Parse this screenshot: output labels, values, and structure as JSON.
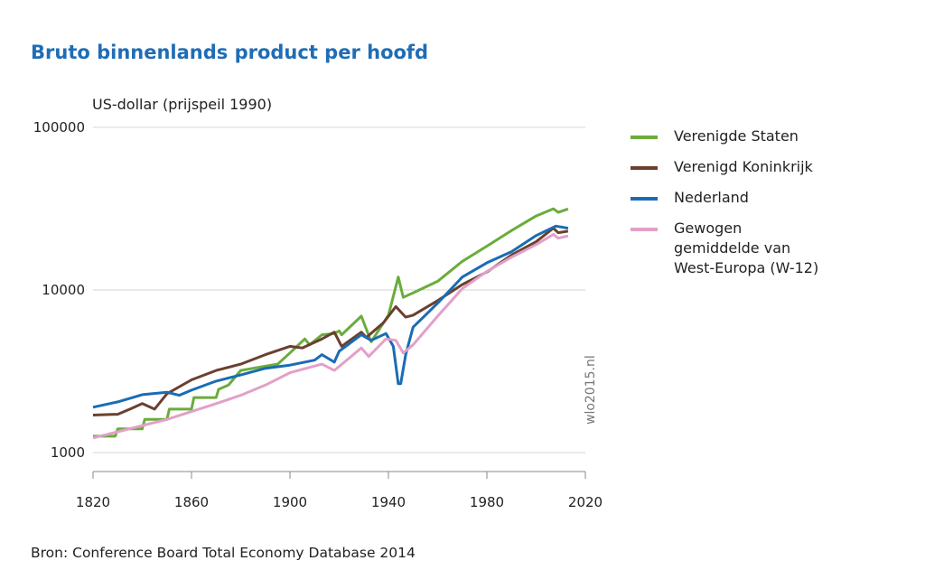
{
  "title": "Bruto binnenlands product per hoofd",
  "source": "Bron: Conference Board Total Economy Database 2014",
  "watermark": "wlo2015.nl",
  "chart_data": {
    "type": "line",
    "title": "Bruto binnenlands product per hoofd",
    "ylabel": "US-dollar (prijspeil 1990)",
    "xlabel": "",
    "y_scale": "log",
    "ylim": [
      1000,
      100000
    ],
    "xlim": [
      1820,
      2020
    ],
    "xticks": [
      "1820",
      "1860",
      "1900",
      "1940",
      "1980",
      "2020"
    ],
    "yticks": [
      "1000",
      "10000",
      "100000"
    ],
    "grid": "horizontal",
    "legend_position": "right",
    "series": [
      {
        "name": "Verenigde Staten",
        "color": "#6aac3c",
        "points": [
          [
            1820,
            1260
          ],
          [
            1829,
            1260
          ],
          [
            1830,
            1400
          ],
          [
            1840,
            1400
          ],
          [
            1841,
            1600
          ],
          [
            1850,
            1600
          ],
          [
            1851,
            1850
          ],
          [
            1860,
            1850
          ],
          [
            1861,
            2180
          ],
          [
            1870,
            2180
          ],
          [
            1871,
            2450
          ],
          [
            1875,
            2600
          ],
          [
            1880,
            3200
          ],
          [
            1890,
            3400
          ],
          [
            1895,
            3500
          ],
          [
            1900,
            4100
          ],
          [
            1906,
            5000
          ],
          [
            1908,
            4600
          ],
          [
            1913,
            5300
          ],
          [
            1918,
            5400
          ],
          [
            1920,
            5600
          ],
          [
            1921,
            5300
          ],
          [
            1929,
            6900
          ],
          [
            1933,
            4800
          ],
          [
            1940,
            7000
          ],
          [
            1944,
            12000
          ],
          [
            1946,
            9000
          ],
          [
            1948,
            9300
          ],
          [
            1950,
            9600
          ],
          [
            1960,
            11300
          ],
          [
            1970,
            15000
          ],
          [
            1980,
            18600
          ],
          [
            1990,
            23200
          ],
          [
            2000,
            28500
          ],
          [
            2007,
            31600
          ],
          [
            2009,
            30000
          ],
          [
            2013,
            31500
          ]
        ]
      },
      {
        "name": "Verenigd Koninkrijk",
        "color": "#6b4030",
        "points": [
          [
            1820,
            1700
          ],
          [
            1830,
            1720
          ],
          [
            1835,
            1850
          ],
          [
            1840,
            2000
          ],
          [
            1845,
            1850
          ],
          [
            1850,
            2300
          ],
          [
            1860,
            2800
          ],
          [
            1870,
            3200
          ],
          [
            1880,
            3500
          ],
          [
            1890,
            4000
          ],
          [
            1900,
            4500
          ],
          [
            1905,
            4400
          ],
          [
            1913,
            5000
          ],
          [
            1918,
            5500
          ],
          [
            1921,
            4500
          ],
          [
            1929,
            5500
          ],
          [
            1931,
            5100
          ],
          [
            1938,
            6300
          ],
          [
            1943,
            7900
          ],
          [
            1947,
            6800
          ],
          [
            1950,
            7000
          ],
          [
            1960,
            8600
          ],
          [
            1970,
            10800
          ],
          [
            1980,
            12900
          ],
          [
            1990,
            16400
          ],
          [
            2000,
            19800
          ],
          [
            2007,
            24000
          ],
          [
            2009,
            22500
          ],
          [
            2013,
            23000
          ]
        ]
      },
      {
        "name": "Nederland",
        "color": "#1a6cb3",
        "points": [
          [
            1820,
            1900
          ],
          [
            1830,
            2050
          ],
          [
            1840,
            2270
          ],
          [
            1850,
            2350
          ],
          [
            1855,
            2250
          ],
          [
            1860,
            2420
          ],
          [
            1870,
            2750
          ],
          [
            1880,
            3000
          ],
          [
            1890,
            3300
          ],
          [
            1900,
            3450
          ],
          [
            1910,
            3700
          ],
          [
            1913,
            4000
          ],
          [
            1918,
            3600
          ],
          [
            1920,
            4200
          ],
          [
            1929,
            5300
          ],
          [
            1933,
            4900
          ],
          [
            1939,
            5400
          ],
          [
            1942,
            4500
          ],
          [
            1944,
            2650
          ],
          [
            1945,
            2650
          ],
          [
            1947,
            4000
          ],
          [
            1950,
            5900
          ],
          [
            1955,
            7000
          ],
          [
            1960,
            8300
          ],
          [
            1970,
            12000
          ],
          [
            1980,
            14700
          ],
          [
            1990,
            17200
          ],
          [
            2000,
            21600
          ],
          [
            2008,
            24700
          ],
          [
            2013,
            24000
          ]
        ]
      },
      {
        "name": "Gewogen gemiddelde van West-Europa (W-12)",
        "color": "#e2a0c8",
        "points": [
          [
            1820,
            1230
          ],
          [
            1850,
            1600
          ],
          [
            1870,
            2000
          ],
          [
            1880,
            2250
          ],
          [
            1890,
            2600
          ],
          [
            1900,
            3100
          ],
          [
            1913,
            3500
          ],
          [
            1918,
            3200
          ],
          [
            1929,
            4400
          ],
          [
            1932,
            3900
          ],
          [
            1939,
            5000
          ],
          [
            1943,
            4900
          ],
          [
            1946,
            4100
          ],
          [
            1950,
            4600
          ],
          [
            1960,
            6900
          ],
          [
            1970,
            10200
          ],
          [
            1980,
            13000
          ],
          [
            1990,
            15900
          ],
          [
            2000,
            19000
          ],
          [
            2007,
            22000
          ],
          [
            2009,
            20800
          ],
          [
            2013,
            21500
          ]
        ]
      }
    ]
  },
  "legend": [
    {
      "label": "Verenigde Staten",
      "color": "#6aac3c"
    },
    {
      "label": "Verenigd Koninkrijk",
      "color": "#6b4030"
    },
    {
      "label": "Nederland",
      "color": "#1a6cb3"
    },
    {
      "label": "Gewogen gemiddelde van West-Europa (W-12)",
      "color": "#e2a0c8"
    }
  ]
}
